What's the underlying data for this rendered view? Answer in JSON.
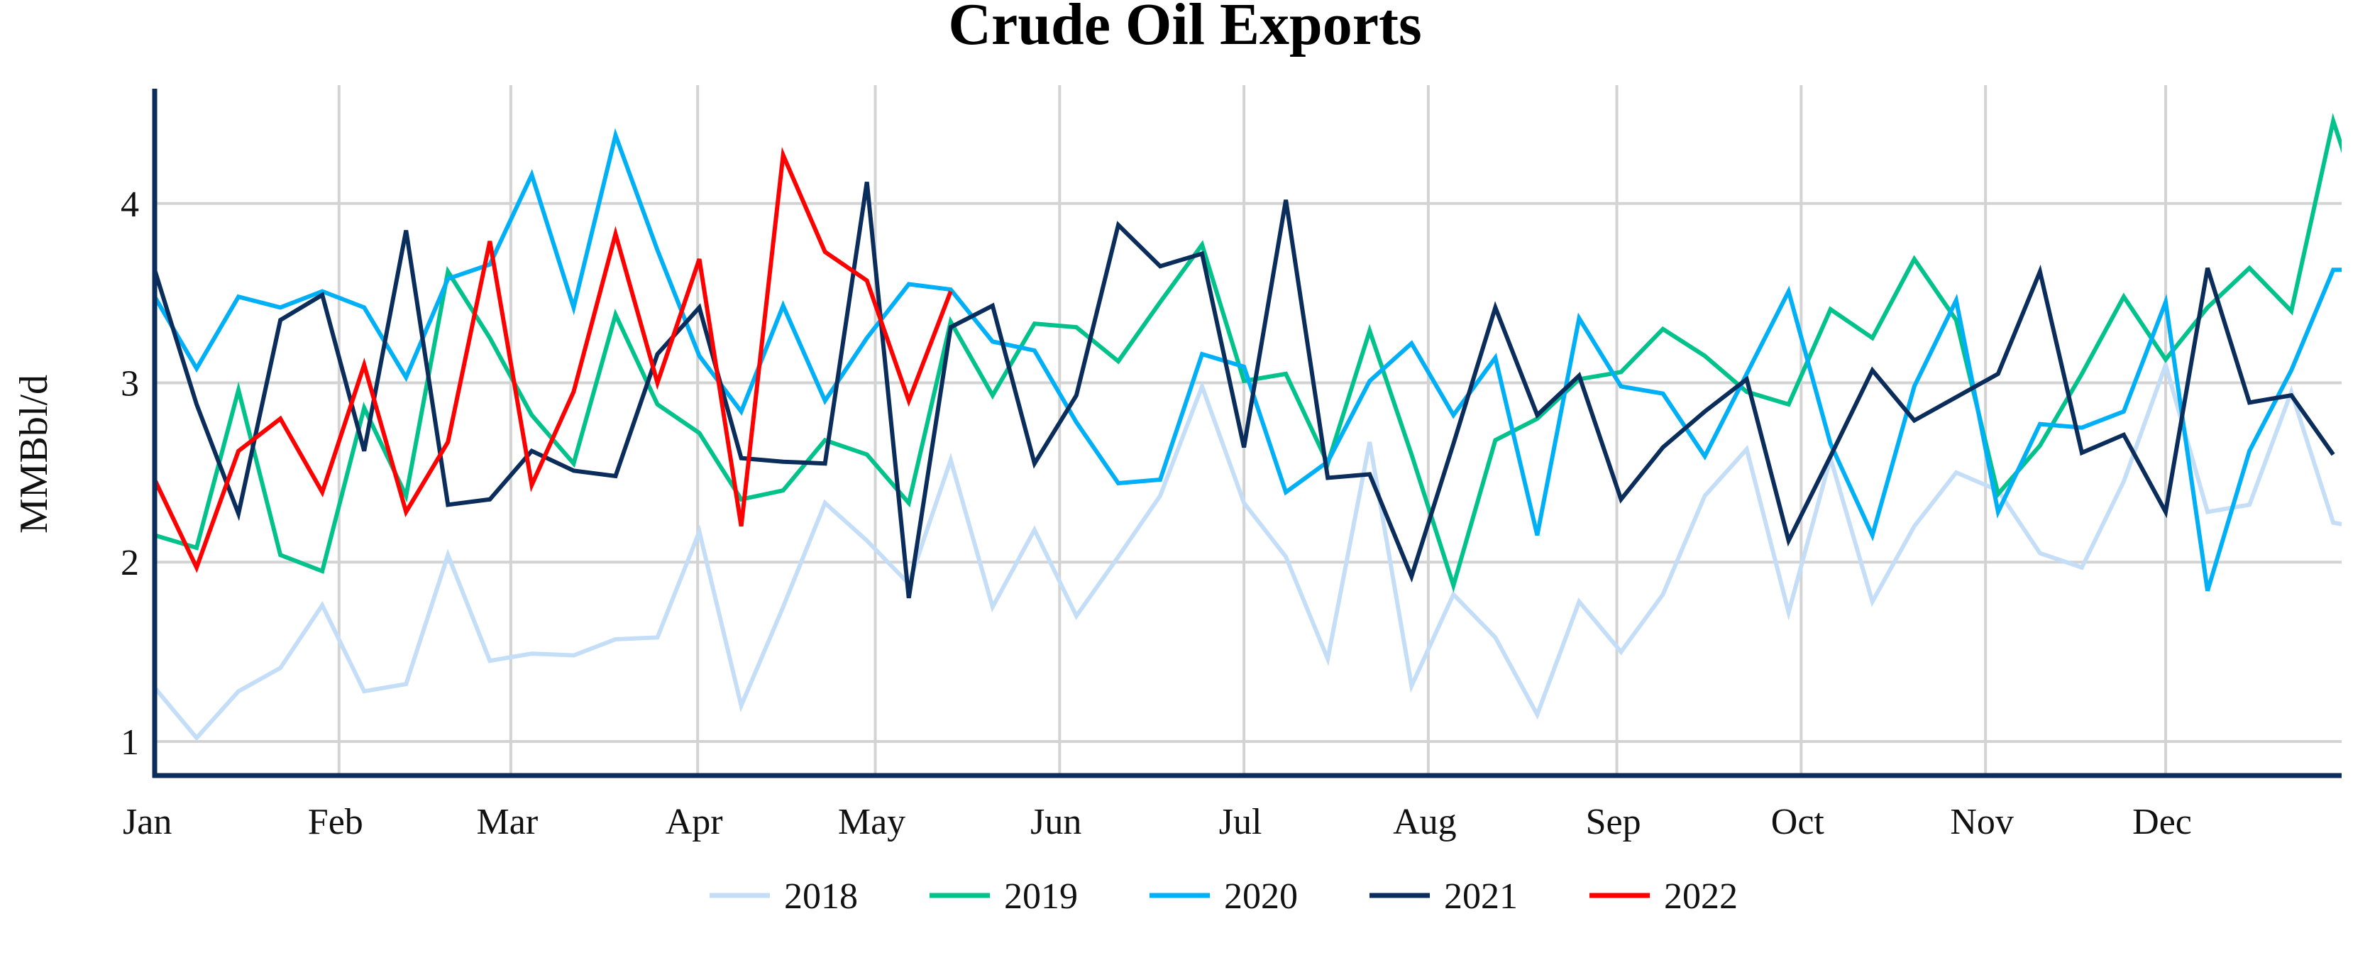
{
  "chart_data": {
    "type": "line",
    "title": "Crude Oil Exports",
    "xlabel": "",
    "ylabel": "MMBbl/d",
    "x_unit": "week of year",
    "xlim": [
      0,
      52.2
    ],
    "ylim": [
      0.81,
      4.64
    ],
    "grid": true,
    "legend_position": "bottom-center",
    "y_ticks": [
      1,
      2,
      3,
      4
    ],
    "x_ticks": [
      {
        "label": "Jan",
        "week": 0
      },
      {
        "label": "Feb",
        "week": 4.4
      },
      {
        "label": "Mar",
        "week": 8.5
      },
      {
        "label": "Apr",
        "week": 12.96
      },
      {
        "label": "May",
        "week": 17.2
      },
      {
        "label": "Jun",
        "week": 21.6
      },
      {
        "label": "Jul",
        "week": 26.0
      },
      {
        "label": "Aug",
        "week": 30.4
      },
      {
        "label": "Sep",
        "week": 34.9
      },
      {
        "label": "Oct",
        "week": 39.3
      },
      {
        "label": "Nov",
        "week": 43.7
      },
      {
        "label": "Dec",
        "week": 48.0
      }
    ],
    "series": [
      {
        "name": "2018",
        "color": "#c5def8",
        "values": [
          1.3,
          1.02,
          1.28,
          1.41,
          1.76,
          1.28,
          1.32,
          2.04,
          1.45,
          1.49,
          1.48,
          1.57,
          1.58,
          2.17,
          1.2,
          1.75,
          2.33,
          2.12,
          1.88,
          2.57,
          1.75,
          2.18,
          1.7,
          2.03,
          2.37,
          2.98,
          2.33,
          2.03,
          1.46,
          2.67,
          1.31,
          1.82,
          1.58,
          1.15,
          1.78,
          1.5,
          1.82,
          2.37,
          2.63,
          1.72,
          2.58,
          1.78,
          2.2,
          2.5,
          2.4,
          2.05,
          1.97,
          2.45,
          3.1,
          2.28,
          2.32,
          2.95,
          2.22,
          2.18
        ]
      },
      {
        "name": "2019",
        "color": "#00c28a",
        "values": [
          2.15,
          2.08,
          2.96,
          2.04,
          1.95,
          2.86,
          2.37,
          3.62,
          3.25,
          2.82,
          2.55,
          3.38,
          2.88,
          2.72,
          2.35,
          2.4,
          2.68,
          2.6,
          2.33,
          3.34,
          2.93,
          3.33,
          3.31,
          3.12,
          3.45,
          3.77,
          3.01,
          3.05,
          2.55,
          3.29,
          2.6,
          1.87,
          2.68,
          2.8,
          3.02,
          3.06,
          3.3,
          3.15,
          2.95,
          2.88,
          3.41,
          3.25,
          3.69,
          3.35,
          2.38,
          2.65,
          3.05,
          3.48,
          3.13,
          3.42,
          3.64,
          3.4,
          4.46,
          3.75
        ]
      },
      {
        "name": "2020",
        "color": "#00b0f6",
        "values": [
          3.48,
          3.08,
          3.48,
          3.42,
          3.51,
          3.42,
          3.03,
          3.58,
          3.66,
          4.16,
          3.42,
          4.38,
          3.74,
          3.15,
          2.84,
          3.43,
          2.9,
          3.25,
          3.55,
          3.52,
          3.23,
          3.18,
          2.78,
          2.44,
          2.46,
          3.16,
          3.09,
          2.39,
          2.56,
          3.01,
          3.22,
          2.82,
          3.14,
          2.15,
          3.36,
          2.98,
          2.94,
          2.59,
          3.05,
          3.51,
          2.66,
          2.15,
          2.98,
          3.46,
          2.28,
          2.77,
          2.75,
          2.84,
          3.45,
          1.84,
          2.62,
          3.07,
          3.63,
          3.63
        ]
      },
      {
        "name": "2021",
        "color": "#0b2d5c",
        "values": [
          3.63,
          2.88,
          2.27,
          3.35,
          3.49,
          2.62,
          3.85,
          2.32,
          2.35,
          2.62,
          2.51,
          2.48,
          3.16,
          3.42,
          2.58,
          2.56,
          2.55,
          4.12,
          1.8,
          3.31,
          3.43,
          2.55,
          2.93,
          3.88,
          3.65,
          3.72,
          2.64,
          4.02,
          2.47,
          2.49,
          1.92,
          2.66,
          3.42,
          2.82,
          3.04,
          2.35,
          2.64,
          2.84,
          3.02,
          2.12,
          2.59,
          3.07,
          2.79,
          2.92,
          3.05,
          3.62,
          2.61,
          2.71,
          2.28,
          3.64,
          2.89,
          2.93,
          2.6
        ]
      },
      {
        "name": "2022",
        "color": "#ff0000",
        "values": [
          2.46,
          1.97,
          2.62,
          2.8,
          2.39,
          3.1,
          2.28,
          2.67,
          3.79,
          2.43,
          2.95,
          3.83,
          3.0,
          3.69,
          2.2,
          4.27,
          3.73,
          3.57,
          2.9,
          3.51
        ]
      }
    ]
  }
}
